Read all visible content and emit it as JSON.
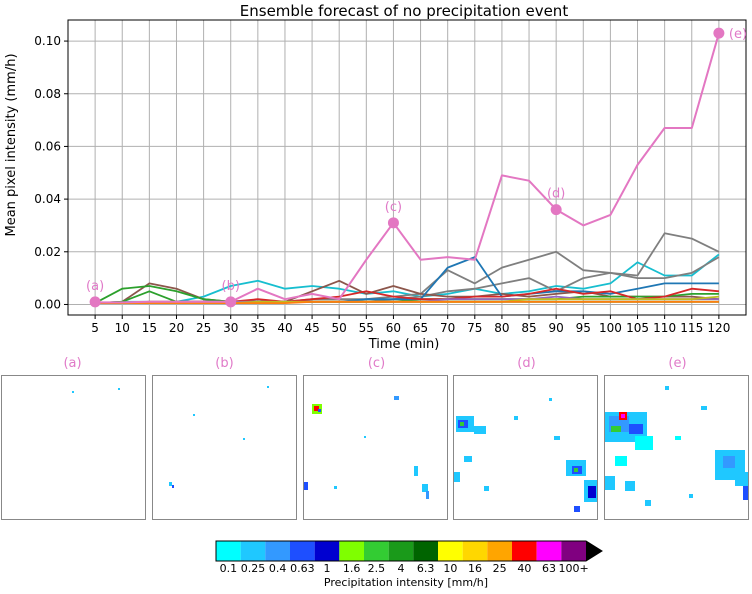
{
  "colors": {
    "highlight": "#e377c2",
    "label_pink": "#e07ac8",
    "grid": "#b0b0b0"
  },
  "chart_data": {
    "type": "line",
    "title": "Ensemble forecast of no precipitation event",
    "xlabel": "Time (min)",
    "ylabel": "Mean pixel intensity (mm/h)",
    "x": [
      5,
      10,
      15,
      20,
      25,
      30,
      35,
      40,
      45,
      50,
      55,
      60,
      65,
      70,
      75,
      80,
      85,
      90,
      95,
      100,
      105,
      110,
      115,
      120
    ],
    "xlim": [
      0,
      125
    ],
    "ylim": [
      -0.004,
      0.108
    ],
    "yticks": [
      0.0,
      0.02,
      0.04,
      0.06,
      0.08,
      0.1
    ],
    "ytick_labels": [
      "0.00",
      "0.02",
      "0.04",
      "0.06",
      "0.08",
      "0.10"
    ],
    "grid": true,
    "series": [
      {
        "color": "#17becf",
        "values": [
          0.0005,
          0.001,
          0.001,
          0.001,
          0.003,
          0.007,
          0.009,
          0.006,
          0.007,
          0.006,
          0.004,
          0.005,
          0.003,
          0.004,
          0.006,
          0.004,
          0.005,
          0.007,
          0.006,
          0.008,
          0.016,
          0.011,
          0.011,
          0.019
        ]
      },
      {
        "color": "#7f7f7f",
        "values": [
          0.0005,
          0.0005,
          0.001,
          0.001,
          0.001,
          0.001,
          0.001,
          0.001,
          0.002,
          0.002,
          0.002,
          0.003,
          0.004,
          0.013,
          0.008,
          0.014,
          0.017,
          0.02,
          0.013,
          0.012,
          0.011,
          0.027,
          0.025,
          0.02
        ]
      },
      {
        "color": "#7f7f7f",
        "values": [
          0.0005,
          0.0005,
          0.0005,
          0.001,
          0.001,
          0.001,
          0.001,
          0.001,
          0.001,
          0.001,
          0.001,
          0.002,
          0.003,
          0.005,
          0.006,
          0.008,
          0.01,
          0.005,
          0.01,
          0.012,
          0.01,
          0.01,
          0.012,
          0.018
        ]
      },
      {
        "color": "#8c564b",
        "values": [
          0.0005,
          0.001,
          0.008,
          0.006,
          0.002,
          0.001,
          0.001,
          0.001,
          0.005,
          0.009,
          0.004,
          0.007,
          0.004,
          0.003,
          0.003,
          0.004,
          0.003,
          0.004,
          0.005,
          0.003,
          0.003,
          0.003,
          0.003,
          0.002
        ]
      },
      {
        "color": "#2ca02c",
        "values": [
          0.0005,
          0.006,
          0.007,
          0.005,
          0.002,
          0.001,
          0.001,
          0.001,
          0.001,
          0.001,
          0.001,
          0.001,
          0.001,
          0.001,
          0.001,
          0.001,
          0.001,
          0.001,
          0.001,
          0.001,
          0.001,
          0.001,
          0.001,
          0.001
        ]
      },
      {
        "color": "#2ca02c",
        "values": [
          0.0005,
          0.001,
          0.005,
          0.001,
          0.001,
          0.001,
          0.001,
          0.001,
          0.001,
          0.001,
          0.001,
          0.001,
          0.002,
          0.002,
          0.002,
          0.002,
          0.002,
          0.002,
          0.003,
          0.003,
          0.003,
          0.003,
          0.004,
          0.004
        ]
      },
      {
        "color": "#1f77b4",
        "values": [
          0.0005,
          0.0005,
          0.0005,
          0.001,
          0.001,
          0.001,
          0.001,
          0.001,
          0.001,
          0.001,
          0.002,
          0.002,
          0.002,
          0.014,
          0.018,
          0.003,
          0.004,
          0.005,
          0.005,
          0.004,
          0.006,
          0.008,
          0.008,
          0.008
        ]
      },
      {
        "color": "#d62728",
        "values": [
          0.0005,
          0.0005,
          0.001,
          0.001,
          0.001,
          0.001,
          0.002,
          0.001,
          0.002,
          0.003,
          0.005,
          0.003,
          0.002,
          0.002,
          0.003,
          0.003,
          0.004,
          0.006,
          0.004,
          0.005,
          0.002,
          0.003,
          0.006,
          0.005
        ]
      },
      {
        "color": "#9467bd",
        "values": [
          0.0005,
          0.0005,
          0.0005,
          0.0005,
          0.001,
          0.001,
          0.001,
          0.001,
          0.001,
          0.001,
          0.001,
          0.001,
          0.001,
          0.002,
          0.002,
          0.002,
          0.002,
          0.003,
          0.002,
          0.002,
          0.002,
          0.002,
          0.002,
          0.002
        ]
      },
      {
        "color": "#bcbd22",
        "values": [
          0.0005,
          0.0005,
          0.0005,
          0.0005,
          0.0005,
          0.0005,
          0.001,
          0.001,
          0.001,
          0.001,
          0.001,
          0.001,
          0.001,
          0.001,
          0.001,
          0.001,
          0.002,
          0.002,
          0.002,
          0.002,
          0.002,
          0.002,
          0.002,
          0.003
        ]
      },
      {
        "color": "#ff7f0e",
        "values": [
          0.0005,
          0.0005,
          0.0005,
          0.0005,
          0.0005,
          0.0005,
          0.0005,
          0.0005,
          0.001,
          0.001,
          0.001,
          0.001,
          0.001,
          0.001,
          0.001,
          0.001,
          0.001,
          0.001,
          0.001,
          0.001,
          0.001,
          0.001,
          0.001,
          0.001
        ]
      },
      {
        "color": "#e377c2",
        "values": [
          0.0008,
          0.0008,
          0.001,
          0.001,
          0.001,
          0.001,
          0.006,
          0.002,
          0.004,
          0.002,
          0.017,
          0.031,
          0.017,
          0.018,
          0.017,
          0.049,
          0.047,
          0.036,
          0.03,
          0.034,
          0.053,
          0.067,
          0.067,
          0.103
        ]
      }
    ],
    "annotations": [
      {
        "label": "(a)",
        "x": 5,
        "y": 0.001
      },
      {
        "label": "(b)",
        "x": 30,
        "y": 0.001
      },
      {
        "label": "(c)",
        "x": 60,
        "y": 0.031
      },
      {
        "label": "(d)",
        "x": 90,
        "y": 0.036
      },
      {
        "label": "(e)",
        "x": 120,
        "y": 0.103
      }
    ]
  },
  "panels": [
    {
      "label": "(a)"
    },
    {
      "label": "(b)"
    },
    {
      "label": "(c)"
    },
    {
      "label": "(d)"
    },
    {
      "label": "(e)"
    }
  ],
  "colorbar": {
    "label": "Precipitation intensity [mm/h]",
    "ticks": [
      "0.1",
      "0.25",
      "0.4",
      "0.63",
      "1",
      "1.6",
      "2.5",
      "4",
      "6.3",
      "10",
      "16",
      "25",
      "40",
      "63",
      "100+"
    ],
    "colors": [
      "#00ffff",
      "#1fc8ff",
      "#3399ff",
      "#1e4fff",
      "#0000d0",
      "#7fff00",
      "#33cc33",
      "#1a9a1a",
      "#006400",
      "#ffff00",
      "#ffd700",
      "#ffa500",
      "#ff0000",
      "#ff00ff",
      "#800080"
    ]
  }
}
